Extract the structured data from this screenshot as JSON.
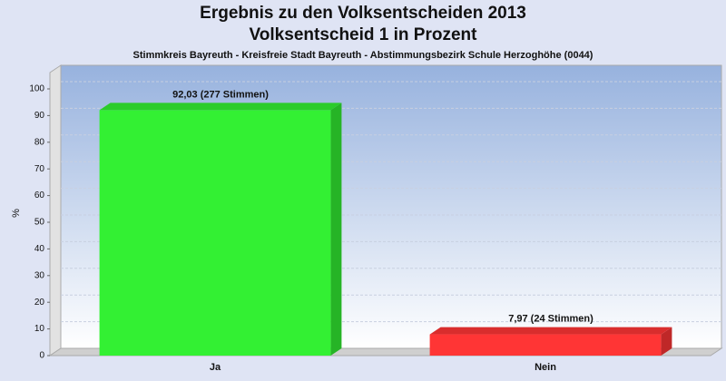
{
  "chart_data": {
    "type": "bar3d",
    "title": [
      "Ergebnis zu den Volksentscheiden 2013",
      "Volksentscheid 1 in Prozent"
    ],
    "subtitle": "Stimmkreis Bayreuth - Kreisfreie Stadt Bayreuth - Abstimmungsbezirk Schule Herzoghöhe (0044)",
    "y_label": "%",
    "categories": [
      "Ja",
      "Nein"
    ],
    "values": [
      92.03,
      7.97
    ],
    "value_labels": [
      "92,03 (277 Stimmen)",
      "7,97 (24 Stimmen)"
    ],
    "colors": [
      "#33f033",
      "#ff3535"
    ],
    "ylim": [
      0,
      100
    ],
    "yticks": [
      0,
      10,
      20,
      30,
      40,
      50,
      60,
      70,
      80,
      90,
      100
    ],
    "grid": true
  }
}
